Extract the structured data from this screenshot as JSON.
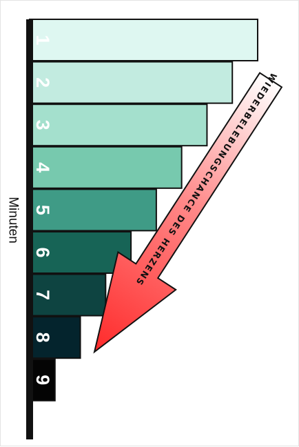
{
  "chart_data": {
    "type": "bar",
    "orientation": "horizontal",
    "axis_label": "Minuten",
    "categories": [
      "1",
      "2",
      "3",
      "4",
      "5",
      "6",
      "7",
      "8",
      "9"
    ],
    "values": [
      9,
      8,
      7,
      6,
      5,
      4,
      3,
      2,
      1
    ],
    "xlim": [
      0,
      9
    ],
    "bar_colors": [
      "#def7f1",
      "#c2ebe0",
      "#a4e0cd",
      "#77c9ae",
      "#3f9b86",
      "#176456",
      "#0e4441",
      "#04242d",
      "#040404"
    ],
    "label_colors": [
      "#ffffff",
      "#ffffff",
      "#ffffff",
      "#ffffff",
      "#ffffff",
      "#ffffff",
      "#ffffff",
      "#ffffff",
      "#ffffff"
    ],
    "annotation": {
      "text": "WIEDERBELEBUNGSCHANCE DES HERZENS",
      "shape": "arrow-pointing-down-left",
      "gradient": [
        "#ffffff",
        "#ff2a2a"
      ]
    }
  }
}
